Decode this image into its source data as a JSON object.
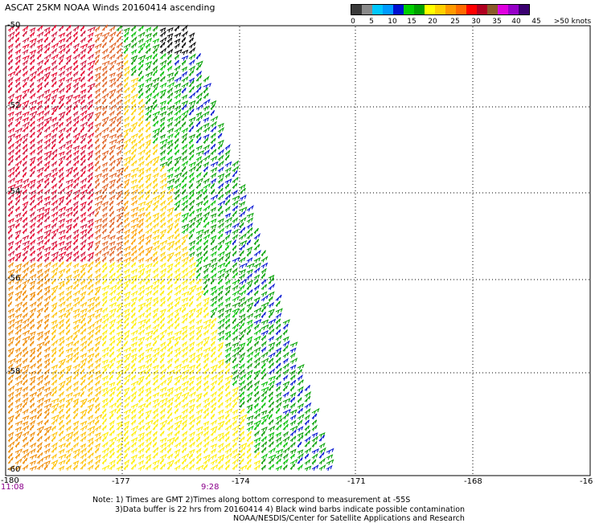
{
  "title": "ASCAT 25KM NOAA Winds 20160414 ascending",
  "scale": {
    "colors": [
      "#3a3a3a",
      "#8a8a8a",
      "#00c8ff",
      "#009bff",
      "#0010d0",
      "#00d000",
      "#00a000",
      "#ffff00",
      "#ffd000",
      "#ff9a00",
      "#ff6a00",
      "#ff0000",
      "#b00020",
      "#8a5a2a",
      "#e000e0",
      "#9600c8",
      "#3a0070"
    ],
    "labels": [
      "0",
      "5",
      "10",
      "15",
      "20",
      "25",
      "30",
      "35",
      "40",
      "45",
      ">50 knots"
    ]
  },
  "axes": {
    "lon_labels": [
      "-180",
      "-177",
      "-174",
      "-171",
      "-168",
      "-16"
    ],
    "lat_labels": [
      "-50",
      "-52",
      "-54",
      "-56",
      "-58",
      "-60"
    ]
  },
  "times": [
    "11:08",
    "9:28"
  ],
  "notes": [
    "Note: 1) Times are GMT 2)Times along bottom correspond to measurement at -55S",
    "3)Data buffer is 22 hrs from 20160414 4) Black wind barbs indicate possible contamination",
    "NOAA/NESDIS/Center for Satellite Applications and Research"
  ]
}
